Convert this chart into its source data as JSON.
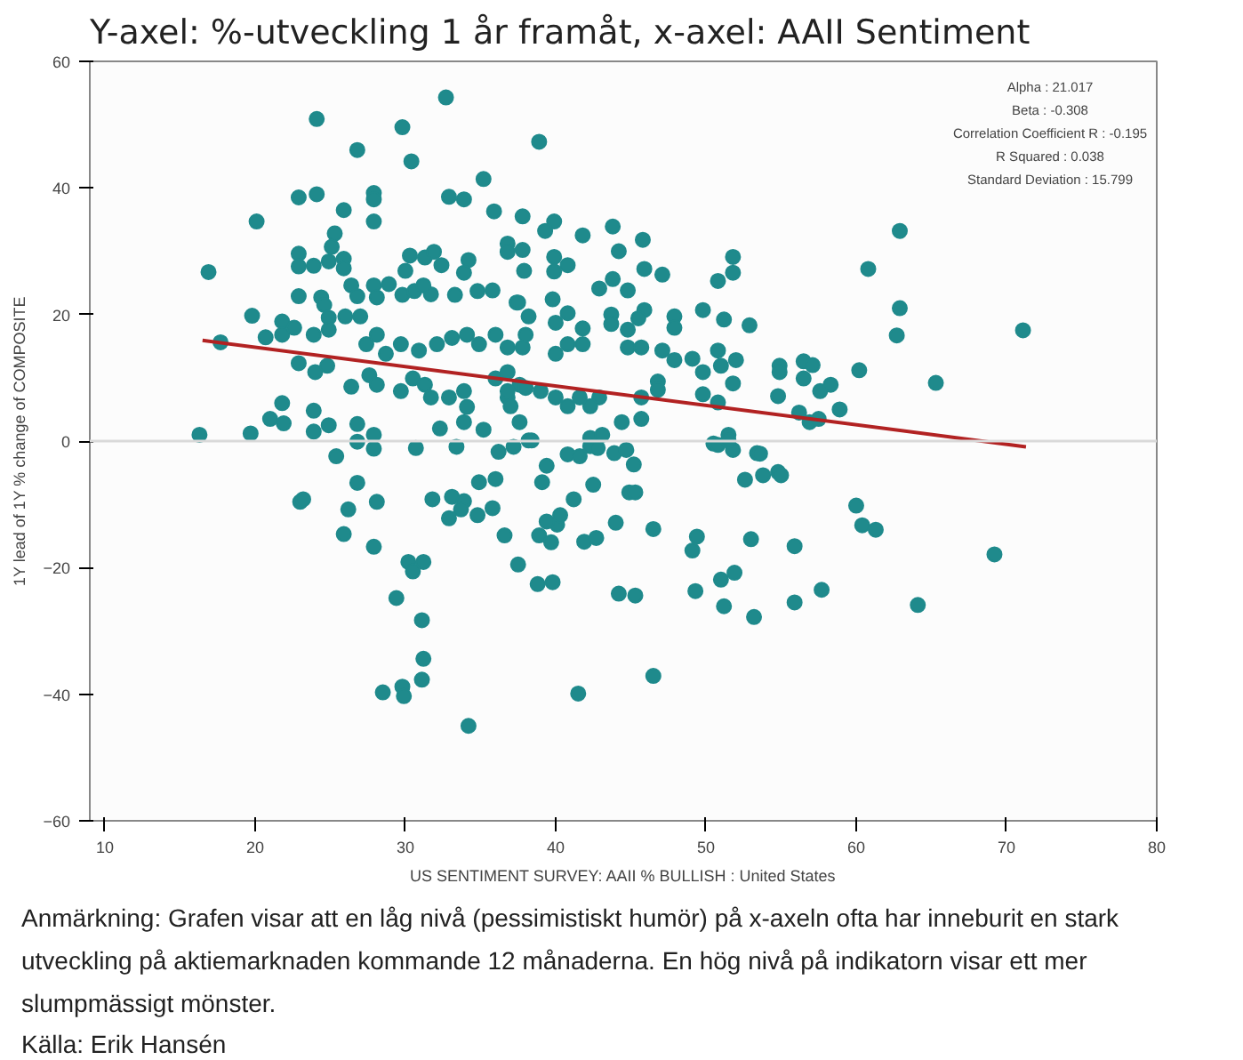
{
  "chart_data": {
    "type": "scatter",
    "title": "Y-axel: %-utveckling 1 år framåt, x-axel: AAII Sentiment",
    "xlabel": "US SENTIMENT SURVEY: AAII % BULLISH : United States",
    "ylabel": "1Y lead of 1Y % change of COMPOSITE",
    "xlim": [
      9,
      80
    ],
    "xticks": [
      10,
      20,
      30,
      40,
      50,
      60,
      70,
      80
    ],
    "ylim": [
      -60,
      60
    ],
    "yticks": [
      -60,
      -40,
      -20,
      0,
      20,
      40,
      60
    ],
    "grid": false,
    "marker": "circle",
    "ref_lines": [
      {
        "axis": "y",
        "value": 0,
        "color": "#d9d9d9"
      }
    ],
    "annotations": [
      "Alpha : 21.017\nBeta : -0.308\nCorrelation Coefficient R : -0.195\nR Squared : 0.038\nStandard Deviation : 15.799",
      "Anmärkning: Grafen visar att en låg nivå (pessimistiskt humör) på x-axeln ofta har inneburit en stark utveckling på aktiemarknaden kommande 12 månaderna. En hög nivå på indikatorn visar ett mer slumpmässigt mönster.",
      "Källa: Erik Hansén"
    ],
    "series": [
      {
        "color": "#1f8a8c",
        "x": [
          32.7,
          24.1,
          29.8,
          26.8,
          30.4,
          35.2,
          22.9,
          24.1,
          27.9,
          27.9,
          32.9,
          33.9,
          25.9,
          35.9,
          27.9,
          20.1,
          37.8,
          25.3,
          16.9,
          22.9,
          22.9,
          23.9,
          24.9,
          25.9,
          25.9,
          25.1,
          30.0,
          30.3,
          31.3,
          31.9,
          32.4,
          34.2,
          33.9,
          36.8,
          36.8,
          37.8,
          22.9,
          24.4,
          24.6,
          26.4,
          26.8,
          27.9,
          28.1,
          28.9,
          29.8,
          30.6,
          31.7,
          31.2,
          33.3,
          34.8,
          35.8,
          37.4,
          38.2,
          19.8,
          20.7,
          21.8,
          21.8,
          22.6,
          23.9,
          24.9,
          26.0,
          27.0,
          24.9,
          27.4,
          28.1,
          28.7,
          29.7,
          30.9,
          32.1,
          33.1,
          34.1,
          34.9,
          36.0,
          36.8,
          37.8,
          22.9,
          24.0,
          24.8,
          26.4,
          27.6,
          28.1,
          29.7,
          30.5,
          31.3,
          31.7,
          32.9,
          33.9,
          36.0,
          36.8,
          37.6,
          21.8,
          21.0,
          21.9,
          23.9,
          23.9,
          24.9,
          26.8,
          27.9,
          26.8,
          27.9,
          25.4,
          30.7,
          32.3,
          33.9,
          34.1,
          35.2,
          36.2,
          37.2,
          38.2,
          16.3,
          19.7,
          38.9,
          39.9,
          39.3,
          41.8,
          43.8,
          45.8,
          44.2,
          47.1,
          45.9,
          42.9,
          43.8,
          44.8,
          39.9,
          40.8,
          39.9,
          37.9,
          51.8,
          51.8,
          50.8,
          49.8,
          51.2,
          52.9,
          47.9,
          47.9,
          45.9,
          45.5,
          44.8,
          44.8,
          43.7,
          43.7,
          39.8,
          37.5,
          38.0,
          40.0,
          40.8,
          41.8,
          41.8,
          40.8,
          40.0,
          45.7,
          47.1,
          47.9,
          49.1,
          50.8,
          51.0,
          52.0,
          49.8,
          51.8,
          49.8,
          50.8,
          54.9,
          54.9,
          56.5,
          57.1,
          56.5,
          57.6,
          54.8,
          46.8,
          46.8,
          45.7,
          45.7,
          44.4,
          42.9,
          42.3,
          41.6,
          40.8,
          40.0,
          39.0,
          38.0,
          36.8,
          36.8,
          37.0,
          37.6,
          38.4,
          39.4,
          40.8,
          41.6,
          42.3,
          43.1,
          43.9,
          44.7,
          45.2,
          50.5,
          51.5,
          51.8,
          53.4,
          54.8,
          58.3,
          58.9,
          56.9,
          56.2,
          57.5,
          62.9,
          60.8,
          62.9,
          62.7,
          71.1,
          60.2,
          65.3,
          23.0,
          23.2,
          26.8,
          26.2,
          25.9,
          28.1,
          27.9,
          31.8,
          33.1,
          33.9,
          33.7,
          32.9,
          34.9,
          34.8,
          36.0,
          35.8,
          36.6,
          37.5,
          33.4,
          42.3,
          42.8,
          42.5,
          41.2,
          39.1,
          38.9,
          39.7,
          40.1,
          39.4,
          40.3,
          41.9,
          42.7,
          44.0,
          44.9,
          45.3,
          46.5,
          38.8,
          39.8,
          44.2,
          45.3,
          46.5,
          41.5,
          30.2,
          30.5,
          31.2,
          29.4,
          31.1,
          31.2,
          31.1,
          28.5,
          29.8,
          29.9,
          34.2,
          50.8,
          51.5,
          53.6,
          52.6,
          53.8,
          55.0,
          60.0,
          60.4,
          61.3,
          49.4,
          49.1,
          53.0,
          55.9,
          49.3,
          51.0,
          51.9,
          51.2,
          53.2,
          55.9,
          57.7,
          64.1,
          69.2,
          17.7
        ],
        "values": [
          54.3,
          50.9,
          49.6,
          46.0,
          44.2,
          41.4,
          38.5,
          39.0,
          39.2,
          38.2,
          38.6,
          38.2,
          36.5,
          36.3,
          34.7,
          34.7,
          35.5,
          32.8,
          26.7,
          29.6,
          27.6,
          27.7,
          28.4,
          28.8,
          27.3,
          30.7,
          26.9,
          29.3,
          29.0,
          29.9,
          27.8,
          28.6,
          26.6,
          31.2,
          29.9,
          30.2,
          22.9,
          22.7,
          21.5,
          24.6,
          22.9,
          24.6,
          22.7,
          24.8,
          23.1,
          23.7,
          23.2,
          24.6,
          23.1,
          23.7,
          23.8,
          21.9,
          19.7,
          19.8,
          16.4,
          18.9,
          16.8,
          17.9,
          16.8,
          19.5,
          19.7,
          19.7,
          17.6,
          15.3,
          16.8,
          13.8,
          15.3,
          14.3,
          15.3,
          16.3,
          16.8,
          15.3,
          16.8,
          14.8,
          14.8,
          12.3,
          10.9,
          11.9,
          8.6,
          10.4,
          8.9,
          7.9,
          9.9,
          8.9,
          6.9,
          6.9,
          7.9,
          9.9,
          6.9,
          8.9,
          6.0,
          3.5,
          2.8,
          4.8,
          1.5,
          2.5,
          2.7,
          1.0,
          -0.1,
          -1.2,
          -2.4,
          -1.1,
          2.0,
          3.0,
          5.4,
          1.8,
          -1.7,
          -0.9,
          0.1,
          1.0,
          1.2,
          47.3,
          34.7,
          33.2,
          32.5,
          33.9,
          31.8,
          30.0,
          26.3,
          27.2,
          24.1,
          25.6,
          23.8,
          29.1,
          27.8,
          26.8,
          26.9,
          29.1,
          26.6,
          25.3,
          20.7,
          19.2,
          18.3,
          19.7,
          17.9,
          20.7,
          19.4,
          17.6,
          14.8,
          20.0,
          18.5,
          22.4,
          21.9,
          16.8,
          18.7,
          20.2,
          17.8,
          15.3,
          15.3,
          13.8,
          14.8,
          14.3,
          12.8,
          13.0,
          14.3,
          11.9,
          12.8,
          10.9,
          9.1,
          7.4,
          6.1,
          11.9,
          10.9,
          12.6,
          12.0,
          9.9,
          7.9,
          7.1,
          9.4,
          8.1,
          6.9,
          3.5,
          3.0,
          6.9,
          5.5,
          6.9,
          5.5,
          6.9,
          7.9,
          8.4,
          10.9,
          7.9,
          5.5,
          3.0,
          0.1,
          -3.9,
          -2.1,
          -2.4,
          0.5,
          1.0,
          -1.9,
          -1.4,
          -3.7,
          -0.4,
          1.0,
          -1.4,
          -1.9,
          -4.9,
          8.9,
          5.0,
          3.0,
          4.5,
          3.5,
          33.2,
          27.2,
          21.0,
          16.7,
          17.5,
          11.2,
          9.2,
          -9.6,
          -9.2,
          -6.6,
          -10.8,
          -14.7,
          -9.6,
          -16.7,
          -9.2,
          -8.8,
          -9.5,
          -10.8,
          -12.2,
          -6.5,
          -11.7,
          -6.0,
          -10.6,
          -14.9,
          -19.5,
          -0.9,
          -0.8,
          -1.1,
          -6.9,
          -9.2,
          -6.5,
          -14.9,
          -16.0,
          -13.2,
          -12.7,
          -11.7,
          -15.9,
          -15.3,
          -12.9,
          -8.1,
          -8.1,
          -13.9,
          -22.6,
          -22.3,
          -24.1,
          -24.4,
          -37.1,
          -39.9,
          -19.1,
          -20.6,
          -19.1,
          -24.8,
          -28.3,
          -34.4,
          -37.7,
          -39.7,
          -38.8,
          -40.3,
          -45.0,
          -0.6,
          0.1,
          -2.0,
          -6.1,
          -5.4,
          -5.4,
          -10.2,
          -13.3,
          -14.0,
          -15.1,
          -17.3,
          -15.5,
          -16.6,
          -23.7,
          -21.9,
          -20.8,
          -26.1,
          -27.8,
          -25.5,
          -23.5,
          -25.9,
          -17.9,
          15.6
        ]
      },
      {
        "type": "line",
        "marker": "none",
        "color": "#b22222",
        "x": [
          16.5,
          71.3
        ],
        "values": [
          15.9,
          -0.9
        ]
      }
    ]
  }
}
